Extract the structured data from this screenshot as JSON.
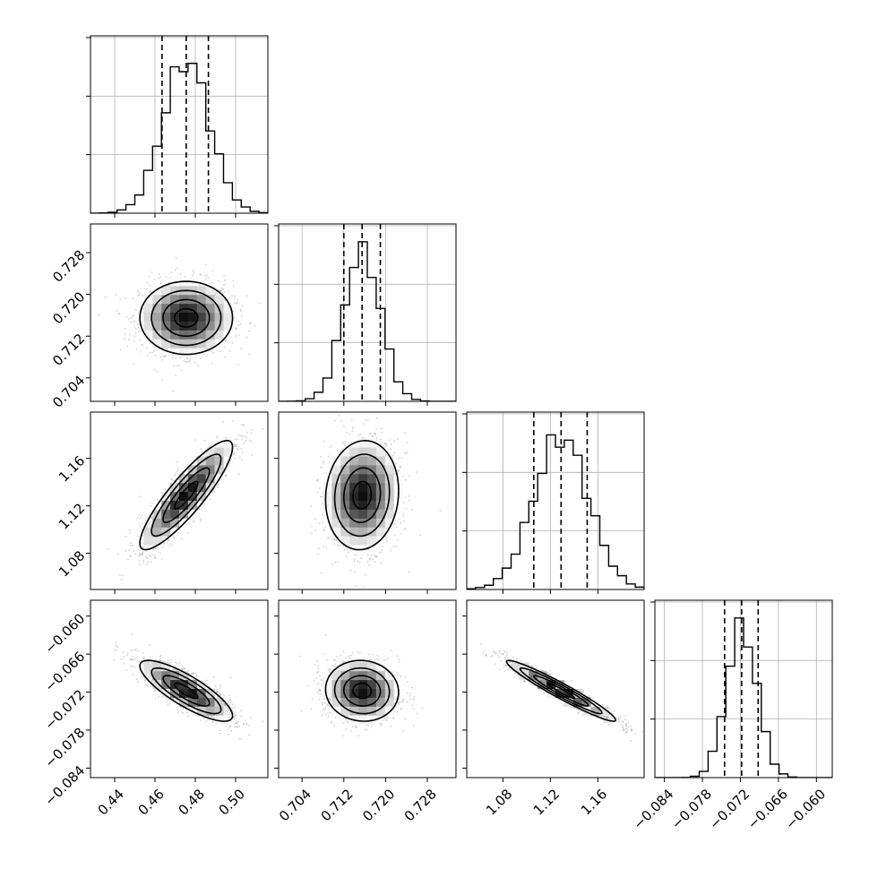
{
  "chart_data": {
    "type": "corner",
    "colors": {
      "axes": "#000000",
      "grid": "#b0b0b0",
      "points": "#9a9a9a",
      "density_dark": "#000000"
    },
    "grid": true,
    "parameters": [
      {
        "key": "p0",
        "mean": 0.4755,
        "sd": 0.0115,
        "range": [
          0.428,
          0.516
        ],
        "ticks": [
          0.44,
          0.46,
          0.48,
          0.5
        ],
        "tick_labels": [
          "0.44",
          "0.46",
          "0.48",
          "0.50"
        ],
        "quantiles": [
          0.4635,
          0.4755,
          0.4865
        ]
      },
      {
        "key": "p1",
        "mean": 0.7155,
        "sd": 0.0035,
        "range": [
          0.6995,
          0.7335
        ],
        "ticks": [
          0.704,
          0.712,
          0.72,
          0.728
        ],
        "tick_labels": [
          "0.704",
          "0.712",
          "0.720",
          "0.728"
        ],
        "quantiles": [
          0.712,
          0.7155,
          0.719
        ]
      },
      {
        "key": "p2",
        "mean": 1.129,
        "sd": 0.023,
        "range": [
          1.0495,
          1.199
        ],
        "ticks": [
          1.08,
          1.12,
          1.16
        ],
        "tick_labels": [
          "1.08",
          "1.12",
          "1.16"
        ],
        "quantiles": [
          1.106,
          1.129,
          1.151
        ]
      },
      {
        "key": "p3",
        "mean": -0.0718,
        "sd": 0.0024,
        "range": [
          -0.0855,
          -0.0575
        ],
        "ticks": [
          -0.084,
          -0.078,
          -0.072,
          -0.066,
          -0.06
        ],
        "tick_labels": [
          "−0.084",
          "−0.078",
          "−0.072",
          "−0.066",
          "−0.060"
        ],
        "quantiles": [
          -0.0745,
          -0.0718,
          -0.0692
        ]
      }
    ],
    "correlations": [
      [
        0,
        1,
        0.0
      ],
      [
        0,
        2,
        0.88
      ],
      [
        0,
        3,
        -0.82
      ],
      [
        1,
        2,
        0.08
      ],
      [
        1,
        3,
        -0.05
      ],
      [
        2,
        3,
        -0.96
      ]
    ],
    "contour_levels_sigma": [
      0.5,
      1.0,
      1.5,
      2.0
    ]
  }
}
